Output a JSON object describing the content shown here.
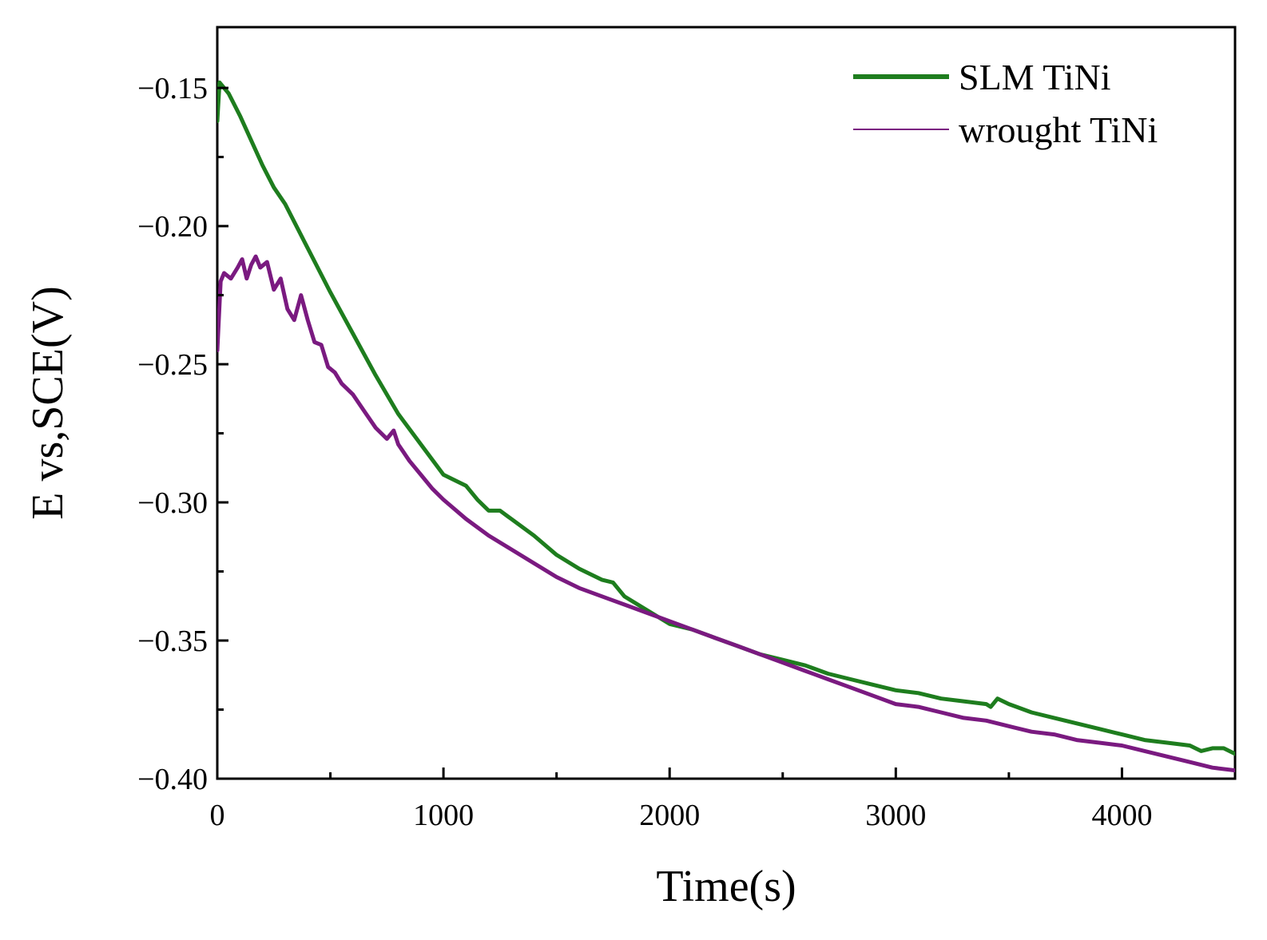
{
  "chart_data": {
    "type": "line",
    "title": "",
    "xlabel": "Time(s)",
    "ylabel": "E vs,SCE(V)",
    "xlim": [
      0,
      4500
    ],
    "ylim": [
      -0.4,
      -0.128
    ],
    "xticks": [
      0,
      1000,
      2000,
      3000,
      4000
    ],
    "xtick_labels": [
      "0",
      "1000",
      "2000",
      "3000",
      "4000"
    ],
    "yticks": [
      -0.4,
      -0.35,
      -0.3,
      -0.25,
      -0.2,
      -0.15
    ],
    "ytick_labels": [
      "−0.40",
      "−0.35",
      "−0.30",
      "−0.25",
      "−0.20",
      "−0.15"
    ],
    "grid": false,
    "legend_position": "top-right",
    "series": [
      {
        "name": "SLM TiNi",
        "color": "#1e7d1e",
        "x": [
          0,
          10,
          50,
          100,
          200,
          250,
          300,
          400,
          500,
          600,
          700,
          800,
          900,
          1000,
          1050,
          1100,
          1150,
          1200,
          1250,
          1300,
          1400,
          1500,
          1600,
          1700,
          1750,
          1800,
          1900,
          2000,
          2100,
          2200,
          2300,
          2400,
          2500,
          2600,
          2700,
          2800,
          2900,
          3000,
          3100,
          3200,
          3300,
          3400,
          3420,
          3450,
          3500,
          3600,
          3700,
          3800,
          3900,
          4000,
          4100,
          4200,
          4300,
          4350,
          4400,
          4450,
          4500
        ],
        "y": [
          -0.162,
          -0.148,
          -0.152,
          -0.16,
          -0.178,
          -0.186,
          -0.192,
          -0.208,
          -0.224,
          -0.239,
          -0.254,
          -0.268,
          -0.279,
          -0.29,
          -0.292,
          -0.294,
          -0.299,
          -0.303,
          -0.303,
          -0.306,
          -0.312,
          -0.319,
          -0.324,
          -0.328,
          -0.329,
          -0.334,
          -0.339,
          -0.344,
          -0.346,
          -0.349,
          -0.352,
          -0.355,
          -0.357,
          -0.359,
          -0.362,
          -0.364,
          -0.366,
          -0.368,
          -0.369,
          -0.371,
          -0.372,
          -0.373,
          -0.374,
          -0.371,
          -0.373,
          -0.376,
          -0.378,
          -0.38,
          -0.382,
          -0.384,
          -0.386,
          -0.387,
          -0.388,
          -0.39,
          -0.389,
          -0.389,
          -0.391
        ]
      },
      {
        "name": "wrought TiNi",
        "color": "#7a1a80",
        "x": [
          0,
          15,
          30,
          60,
          90,
          110,
          130,
          150,
          170,
          190,
          220,
          250,
          280,
          310,
          340,
          370,
          400,
          430,
          460,
          490,
          520,
          550,
          600,
          650,
          700,
          750,
          780,
          800,
          850,
          900,
          950,
          1000,
          1100,
          1200,
          1300,
          1400,
          1500,
          1600,
          1700,
          1800,
          1900,
          2000,
          2100,
          2200,
          2300,
          2400,
          2500,
          2600,
          2700,
          2800,
          2900,
          3000,
          3100,
          3200,
          3300,
          3400,
          3500,
          3600,
          3700,
          3800,
          3900,
          4000,
          4100,
          4200,
          4300,
          4400,
          4500
        ],
        "y": [
          -0.245,
          -0.22,
          -0.217,
          -0.219,
          -0.215,
          -0.212,
          -0.219,
          -0.214,
          -0.211,
          -0.215,
          -0.213,
          -0.223,
          -0.219,
          -0.23,
          -0.234,
          -0.225,
          -0.234,
          -0.242,
          -0.243,
          -0.251,
          -0.253,
          -0.257,
          -0.261,
          -0.267,
          -0.273,
          -0.277,
          -0.274,
          -0.279,
          -0.285,
          -0.29,
          -0.295,
          -0.299,
          -0.306,
          -0.312,
          -0.317,
          -0.322,
          -0.327,
          -0.331,
          -0.334,
          -0.337,
          -0.34,
          -0.343,
          -0.346,
          -0.349,
          -0.352,
          -0.355,
          -0.358,
          -0.361,
          -0.364,
          -0.367,
          -0.37,
          -0.373,
          -0.374,
          -0.376,
          -0.378,
          -0.379,
          -0.381,
          -0.383,
          -0.384,
          -0.386,
          -0.387,
          -0.388,
          -0.39,
          -0.392,
          -0.394,
          -0.396,
          -0.397
        ]
      }
    ]
  }
}
